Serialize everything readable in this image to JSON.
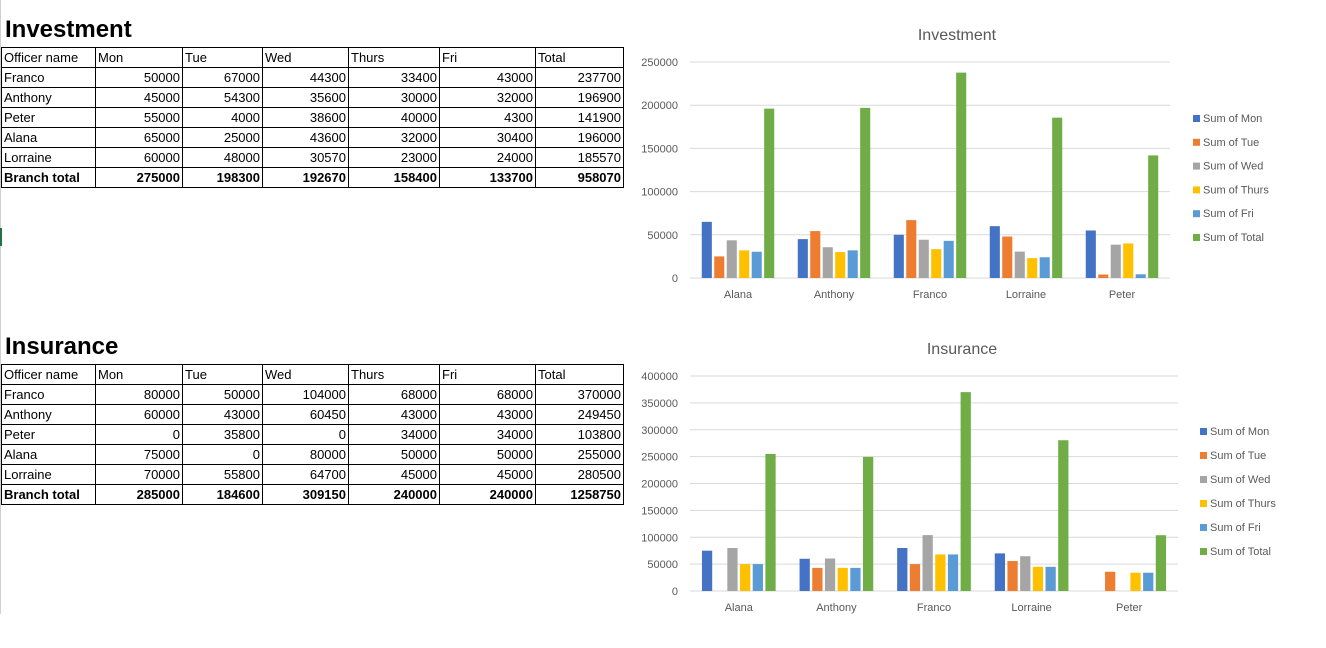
{
  "tables": [
    {
      "title": "Investment",
      "headers": [
        "Officer name",
        "Mon",
        "Tue",
        "Wed",
        "Thurs",
        "Fri",
        "Total"
      ],
      "rows": [
        [
          "Franco",
          "50000",
          "67000",
          "44300",
          "33400",
          "43000",
          "237700"
        ],
        [
          "Anthony",
          "45000",
          "54300",
          "35600",
          "30000",
          "32000",
          "196900"
        ],
        [
          "Peter",
          "55000",
          "4000",
          "38600",
          "40000",
          "4300",
          "141900"
        ],
        [
          "Alana",
          "65000",
          "25000",
          "43600",
          "32000",
          "30400",
          "196000"
        ],
        [
          "Lorraine",
          "60000",
          "48000",
          "30570",
          "23000",
          "24000",
          "185570"
        ]
      ],
      "total_row": [
        "Branch total",
        "275000",
        "198300",
        "192670",
        "158400",
        "133700",
        "958070"
      ]
    },
    {
      "title": "Insurance",
      "headers": [
        "Officer name",
        "Mon",
        "Tue",
        "Wed",
        "Thurs",
        "Fri",
        "Total"
      ],
      "rows": [
        [
          "Franco",
          "80000",
          "50000",
          "104000",
          "68000",
          "68000",
          "370000"
        ],
        [
          "Anthony",
          "60000",
          "43000",
          "60450",
          "43000",
          "43000",
          "249450"
        ],
        [
          "Peter",
          "0",
          "35800",
          "0",
          "34000",
          "34000",
          "103800"
        ],
        [
          "Alana",
          "75000",
          "0",
          "80000",
          "50000",
          "50000",
          "255000"
        ],
        [
          "Lorraine",
          "70000",
          "55800",
          "64700",
          "45000",
          "45000",
          "280500"
        ]
      ],
      "total_row": [
        "Branch total",
        "285000",
        "184600",
        "309150",
        "240000",
        "240000",
        "1258750"
      ]
    }
  ],
  "colors": {
    "Sum of Mon": "#4472c4",
    "Sum of Tue": "#ed7d31",
    "Sum of Wed": "#a5a5a5",
    "Sum of Thurs": "#ffc000",
    "Sum of Fri": "#5b9bd5",
    "Sum of Total": "#70ad47",
    "gridline": "#d9d9d9",
    "axis_text": "#595959",
    "title_text": "#595959"
  },
  "chart_data": [
    {
      "type": "bar",
      "title": "Investment",
      "categories": [
        "Alana",
        "Anthony",
        "Franco",
        "Lorraine",
        "Peter"
      ],
      "ylim": [
        0,
        250000
      ],
      "yticks": [
        0,
        50000,
        100000,
        150000,
        200000,
        250000
      ],
      "ytick_labels": [
        "0",
        "50000",
        "100000",
        "150000",
        "200000",
        "250000"
      ],
      "grid": true,
      "legend_position": "right",
      "series": [
        {
          "name": "Sum of Mon",
          "values": [
            65000,
            45000,
            50000,
            60000,
            55000
          ]
        },
        {
          "name": "Sum of Tue",
          "values": [
            25000,
            54300,
            67000,
            48000,
            4000
          ]
        },
        {
          "name": "Sum of Wed",
          "values": [
            43600,
            35600,
            44300,
            30570,
            38600
          ]
        },
        {
          "name": "Sum of Thurs",
          "values": [
            32000,
            30000,
            33400,
            23000,
            40000
          ]
        },
        {
          "name": "Sum of Fri",
          "values": [
            30400,
            32000,
            43000,
            24000,
            4300
          ]
        },
        {
          "name": "Sum of Total",
          "values": [
            196000,
            196900,
            237700,
            185570,
            141900
          ]
        }
      ]
    },
    {
      "type": "bar",
      "title": "Insurance",
      "categories": [
        "Alana",
        "Anthony",
        "Franco",
        "Lorraine",
        "Peter"
      ],
      "ylim": [
        0,
        400000
      ],
      "yticks": [
        0,
        50000,
        100000,
        150000,
        200000,
        250000,
        300000,
        350000,
        400000
      ],
      "ytick_labels": [
        "0",
        "50000",
        "100000",
        "150000",
        "200000",
        "250000",
        "300000",
        "350000",
        "400000"
      ],
      "grid": true,
      "legend_position": "right",
      "series": [
        {
          "name": "Sum of Mon",
          "values": [
            75000,
            60000,
            80000,
            70000,
            0
          ]
        },
        {
          "name": "Sum of Tue",
          "values": [
            0,
            43000,
            50000,
            55800,
            35800
          ]
        },
        {
          "name": "Sum of Wed",
          "values": [
            80000,
            60450,
            104000,
            64700,
            0
          ]
        },
        {
          "name": "Sum of Thurs",
          "values": [
            50000,
            43000,
            68000,
            45000,
            34000
          ]
        },
        {
          "name": "Sum of Fri",
          "values": [
            50000,
            43000,
            68000,
            45000,
            34000
          ]
        },
        {
          "name": "Sum of Total",
          "values": [
            255000,
            249450,
            370000,
            280500,
            103800
          ]
        }
      ]
    }
  ]
}
